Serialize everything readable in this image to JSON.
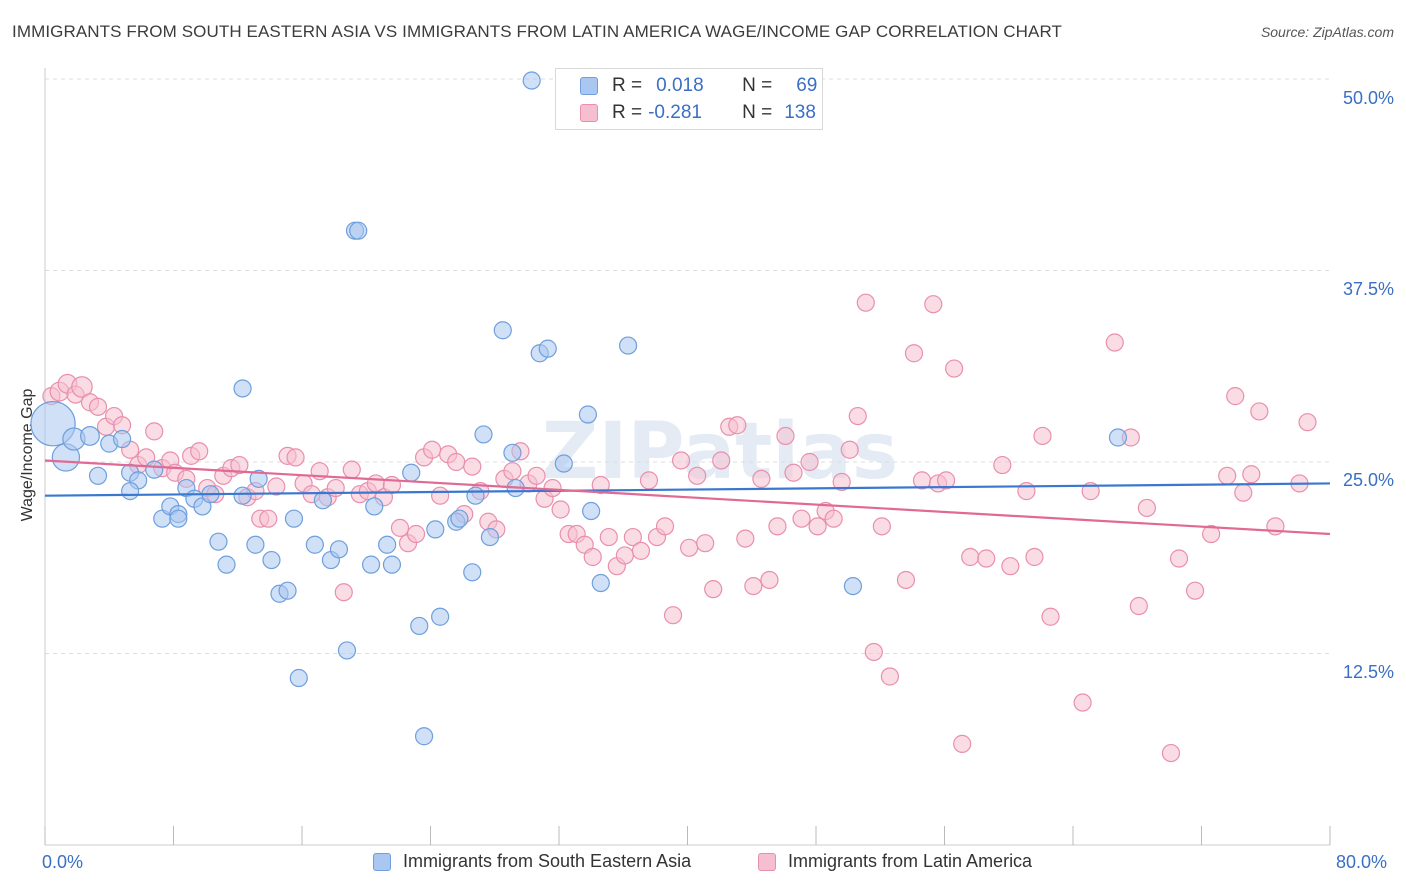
{
  "title": "IMMIGRANTS FROM SOUTH EASTERN ASIA VS IMMIGRANTS FROM LATIN AMERICA WAGE/INCOME GAP CORRELATION CHART",
  "source": "Source: ZipAtlas.com",
  "watermark": "ZIPatlas",
  "stats": {
    "blue": {
      "r_label": "R =",
      "r_value": "0.018",
      "n_label": "N =",
      "n_value": "69"
    },
    "pink": {
      "r_label": "R =",
      "r_value": "-0.281",
      "n_label": "N =",
      "n_value": "138"
    }
  },
  "colors": {
    "blue_fill": "#a9c7f0",
    "blue_stroke": "#6f9fdc",
    "blue_line": "#3a78d0",
    "pink_fill": "#f6bfd0",
    "pink_stroke": "#e98fae",
    "pink_line": "#e06a94",
    "tick_label": "#3a6fc4",
    "grid": "#dddddd"
  },
  "chart_data": {
    "type": "scatter",
    "xlabel": "",
    "ylabel": "Wage/Income Gap",
    "xlim": [
      0,
      80
    ],
    "ylim": [
      0,
      50
    ],
    "x_tick_labels": [
      "0.0%",
      "80.0%"
    ],
    "y_ticks": [
      12.5,
      25.0,
      37.5,
      50.0
    ],
    "y_tick_labels": [
      "12.5%",
      "25.0%",
      "37.5%",
      "50.0%"
    ],
    "legend_position": "bottom",
    "series": [
      {
        "name": "Immigrants from South Eastern Asia",
        "color": "blue",
        "trend": [
          [
            0,
            22.8
          ],
          [
            80,
            23.6
          ]
        ],
        "points": [
          [
            0.5,
            27.5,
            2.6
          ],
          [
            1.3,
            25.3,
            1.6
          ],
          [
            1.8,
            26.5,
            1.3
          ],
          [
            2.8,
            26.7,
            1.1
          ],
          [
            4.0,
            26.2,
            1.0
          ],
          [
            4.8,
            26.5,
            1.0
          ],
          [
            3.3,
            24.1,
            1.0
          ],
          [
            5.3,
            24.3,
            1.0
          ],
          [
            5.8,
            23.8,
            1.0
          ],
          [
            5.3,
            23.1,
            1.0
          ],
          [
            6.8,
            24.5,
            1.0
          ],
          [
            7.3,
            21.3,
            1.0
          ],
          [
            7.8,
            22.1,
            1.0
          ],
          [
            8.3,
            21.6,
            1.0
          ],
          [
            8.3,
            21.3,
            1.0
          ],
          [
            8.8,
            23.3,
            1.0
          ],
          [
            9.3,
            22.6,
            1.0
          ],
          [
            9.8,
            22.1,
            1.0
          ],
          [
            10.3,
            22.9,
            1.0
          ],
          [
            10.8,
            19.8,
            1.0
          ],
          [
            11.3,
            18.3,
            1.0
          ],
          [
            12.3,
            22.8,
            1.0
          ],
          [
            12.3,
            29.8,
            1.0
          ],
          [
            13.1,
            19.6,
            1.0
          ],
          [
            13.3,
            23.9,
            1.0
          ],
          [
            14.1,
            18.6,
            1.0
          ],
          [
            14.6,
            16.4,
            1.0
          ],
          [
            15.1,
            16.6,
            1.0
          ],
          [
            15.5,
            21.3,
            1.0
          ],
          [
            15.8,
            10.9,
            1.0
          ],
          [
            16.8,
            19.6,
            1.0
          ],
          [
            17.3,
            22.5,
            1.0
          ],
          [
            17.8,
            18.6,
            1.0
          ],
          [
            18.3,
            19.3,
            1.0
          ],
          [
            18.8,
            12.7,
            1.0
          ],
          [
            19.3,
            40.1,
            1.0
          ],
          [
            19.5,
            40.1,
            1.0
          ],
          [
            20.3,
            18.3,
            1.0
          ],
          [
            20.5,
            22.1,
            1.0
          ],
          [
            21.3,
            19.6,
            1.0
          ],
          [
            21.6,
            18.3,
            1.0
          ],
          [
            22.8,
            24.3,
            1.0
          ],
          [
            23.3,
            14.3,
            1.0
          ],
          [
            23.6,
            7.1,
            1.0
          ],
          [
            24.3,
            20.6,
            1.0
          ],
          [
            24.6,
            14.9,
            1.0
          ],
          [
            25.6,
            21.1,
            1.0
          ],
          [
            25.8,
            21.3,
            1.0
          ],
          [
            26.6,
            17.8,
            1.0
          ],
          [
            26.8,
            22.8,
            1.0
          ],
          [
            27.3,
            26.8,
            1.0
          ],
          [
            27.7,
            20.1,
            1.0
          ],
          [
            28.5,
            33.6,
            1.0
          ],
          [
            29.1,
            25.6,
            1.0
          ],
          [
            29.3,
            23.3,
            1.0
          ],
          [
            30.3,
            49.9,
            1.0
          ],
          [
            30.8,
            32.1,
            1.0
          ],
          [
            31.3,
            32.4,
            1.0
          ],
          [
            32.3,
            24.9,
            1.0
          ],
          [
            33.8,
            28.1,
            1.0
          ],
          [
            34.0,
            21.8,
            1.0
          ],
          [
            34.6,
            17.1,
            1.0
          ],
          [
            36.3,
            32.6,
            1.0
          ],
          [
            50.3,
            16.9,
            1.0
          ],
          [
            66.8,
            26.6,
            1.0
          ]
        ]
      },
      {
        "name": "Immigrants from Latin America",
        "color": "pink",
        "trend": [
          [
            0,
            25.1
          ],
          [
            80,
            20.3
          ]
        ],
        "points": [
          [
            0.4,
            29.3,
            1.0
          ],
          [
            0.9,
            29.6,
            1.1
          ],
          [
            1.4,
            30.1,
            1.1
          ],
          [
            1.9,
            29.4,
            1.0
          ],
          [
            2.3,
            29.9,
            1.2
          ],
          [
            2.8,
            28.9,
            1.0
          ],
          [
            3.3,
            28.6,
            1.0
          ],
          [
            3.8,
            27.3,
            1.0
          ],
          [
            4.3,
            28.0,
            1.0
          ],
          [
            4.8,
            27.4,
            1.0
          ],
          [
            5.3,
            25.8,
            1.0
          ],
          [
            5.8,
            24.8,
            1.0
          ],
          [
            6.3,
            25.3,
            1.0
          ],
          [
            6.8,
            27.0,
            1.0
          ],
          [
            7.3,
            24.6,
            1.0
          ],
          [
            7.8,
            25.1,
            1.0
          ],
          [
            8.1,
            24.3,
            1.0
          ],
          [
            8.8,
            23.9,
            1.0
          ],
          [
            9.1,
            25.4,
            1.0
          ],
          [
            9.6,
            25.7,
            1.0
          ],
          [
            10.1,
            23.3,
            1.0
          ],
          [
            10.6,
            22.9,
            1.0
          ],
          [
            11.1,
            24.1,
            1.0
          ],
          [
            11.6,
            24.6,
            1.0
          ],
          [
            12.1,
            24.8,
            1.0
          ],
          [
            12.6,
            22.7,
            1.0
          ],
          [
            13.1,
            23.1,
            1.0
          ],
          [
            13.4,
            21.3,
            1.0
          ],
          [
            13.9,
            21.3,
            1.0
          ],
          [
            14.4,
            23.4,
            1.0
          ],
          [
            15.1,
            25.4,
            1.0
          ],
          [
            15.6,
            25.3,
            1.0
          ],
          [
            16.1,
            23.6,
            1.0
          ],
          [
            16.6,
            22.9,
            1.0
          ],
          [
            17.1,
            24.4,
            1.0
          ],
          [
            17.6,
            22.7,
            1.0
          ],
          [
            18.1,
            23.3,
            1.0
          ],
          [
            18.6,
            16.5,
            1.0
          ],
          [
            19.1,
            24.5,
            1.0
          ],
          [
            19.6,
            22.9,
            1.0
          ],
          [
            20.1,
            23.1,
            1.0
          ],
          [
            20.6,
            23.6,
            1.0
          ],
          [
            21.1,
            22.7,
            1.0
          ],
          [
            21.6,
            23.5,
            1.0
          ],
          [
            22.1,
            20.7,
            1.0
          ],
          [
            22.6,
            19.7,
            1.0
          ],
          [
            23.1,
            20.3,
            1.0
          ],
          [
            23.6,
            25.3,
            1.0
          ],
          [
            24.1,
            25.8,
            1.0
          ],
          [
            24.6,
            22.8,
            1.0
          ],
          [
            25.1,
            25.5,
            1.0
          ],
          [
            25.6,
            25.0,
            1.0
          ],
          [
            26.1,
            21.6,
            1.0
          ],
          [
            26.6,
            24.7,
            1.0
          ],
          [
            27.1,
            23.1,
            1.0
          ],
          [
            27.6,
            21.1,
            1.0
          ],
          [
            28.1,
            20.6,
            1.0
          ],
          [
            28.6,
            23.9,
            1.0
          ],
          [
            29.1,
            24.4,
            1.0
          ],
          [
            29.6,
            25.7,
            1.0
          ],
          [
            30.1,
            23.6,
            1.0
          ],
          [
            30.6,
            24.1,
            1.0
          ],
          [
            31.1,
            22.6,
            1.0
          ],
          [
            31.6,
            23.3,
            1.0
          ],
          [
            32.1,
            21.9,
            1.0
          ],
          [
            32.6,
            20.3,
            1.0
          ],
          [
            33.1,
            20.3,
            1.0
          ],
          [
            33.6,
            19.6,
            1.0
          ],
          [
            34.1,
            18.8,
            1.0
          ],
          [
            34.6,
            23.5,
            1.0
          ],
          [
            35.1,
            20.1,
            1.0
          ],
          [
            35.6,
            18.2,
            1.0
          ],
          [
            36.1,
            18.9,
            1.0
          ],
          [
            36.6,
            20.1,
            1.0
          ],
          [
            37.1,
            19.2,
            1.0
          ],
          [
            37.6,
            23.8,
            1.0
          ],
          [
            38.1,
            20.1,
            1.0
          ],
          [
            38.6,
            20.8,
            1.0
          ],
          [
            39.1,
            15.0,
            1.0
          ],
          [
            39.6,
            25.1,
            1.0
          ],
          [
            40.1,
            19.4,
            1.0
          ],
          [
            40.6,
            24.1,
            1.0
          ],
          [
            41.1,
            19.7,
            1.0
          ],
          [
            41.6,
            16.7,
            1.0
          ],
          [
            42.1,
            25.1,
            1.0
          ],
          [
            42.6,
            27.3,
            1.0
          ],
          [
            43.1,
            27.4,
            1.0
          ],
          [
            43.6,
            20.0,
            1.0
          ],
          [
            44.1,
            16.9,
            1.0
          ],
          [
            44.6,
            23.9,
            1.0
          ],
          [
            45.1,
            17.3,
            1.0
          ],
          [
            45.6,
            20.8,
            1.0
          ],
          [
            46.1,
            26.7,
            1.0
          ],
          [
            46.6,
            24.3,
            1.0
          ],
          [
            47.1,
            21.3,
            1.0
          ],
          [
            47.6,
            25.0,
            1.0
          ],
          [
            48.1,
            20.8,
            1.0
          ],
          [
            48.6,
            21.8,
            1.0
          ],
          [
            49.1,
            21.3,
            1.0
          ],
          [
            49.6,
            23.7,
            1.0
          ],
          [
            50.1,
            25.8,
            1.0
          ],
          [
            50.6,
            28.0,
            1.0
          ],
          [
            51.1,
            35.4,
            1.0
          ],
          [
            51.6,
            12.6,
            1.0
          ],
          [
            52.1,
            20.8,
            1.0
          ],
          [
            52.6,
            11.0,
            1.0
          ],
          [
            53.6,
            17.3,
            1.0
          ],
          [
            54.1,
            32.1,
            1.0
          ],
          [
            54.6,
            23.8,
            1.0
          ],
          [
            55.3,
            35.3,
            1.0
          ],
          [
            55.6,
            23.6,
            1.0
          ],
          [
            56.1,
            23.8,
            1.0
          ],
          [
            56.6,
            31.1,
            1.0
          ],
          [
            57.1,
            6.6,
            1.0
          ],
          [
            57.6,
            18.8,
            1.0
          ],
          [
            58.6,
            18.7,
            1.0
          ],
          [
            59.6,
            24.8,
            1.0
          ],
          [
            60.1,
            18.2,
            1.0
          ],
          [
            61.1,
            23.1,
            1.0
          ],
          [
            61.6,
            18.8,
            1.0
          ],
          [
            62.1,
            26.7,
            1.0
          ],
          [
            62.6,
            14.9,
            1.0
          ],
          [
            64.6,
            9.3,
            1.0
          ],
          [
            65.1,
            23.1,
            1.0
          ],
          [
            66.6,
            32.8,
            1.0
          ],
          [
            67.6,
            26.6,
            1.0
          ],
          [
            68.1,
            15.6,
            1.0
          ],
          [
            68.6,
            22.0,
            1.0
          ],
          [
            70.1,
            6.0,
            1.0
          ],
          [
            70.6,
            18.7,
            1.0
          ],
          [
            71.6,
            16.6,
            1.0
          ],
          [
            72.6,
            20.3,
            1.0
          ],
          [
            73.6,
            24.1,
            1.0
          ],
          [
            74.1,
            29.3,
            1.0
          ],
          [
            74.6,
            23.0,
            1.0
          ],
          [
            75.1,
            24.2,
            1.0
          ],
          [
            75.6,
            28.3,
            1.0
          ],
          [
            76.6,
            20.8,
            1.0
          ],
          [
            78.1,
            23.6,
            1.0
          ],
          [
            78.6,
            27.6,
            1.0
          ]
        ]
      }
    ]
  }
}
